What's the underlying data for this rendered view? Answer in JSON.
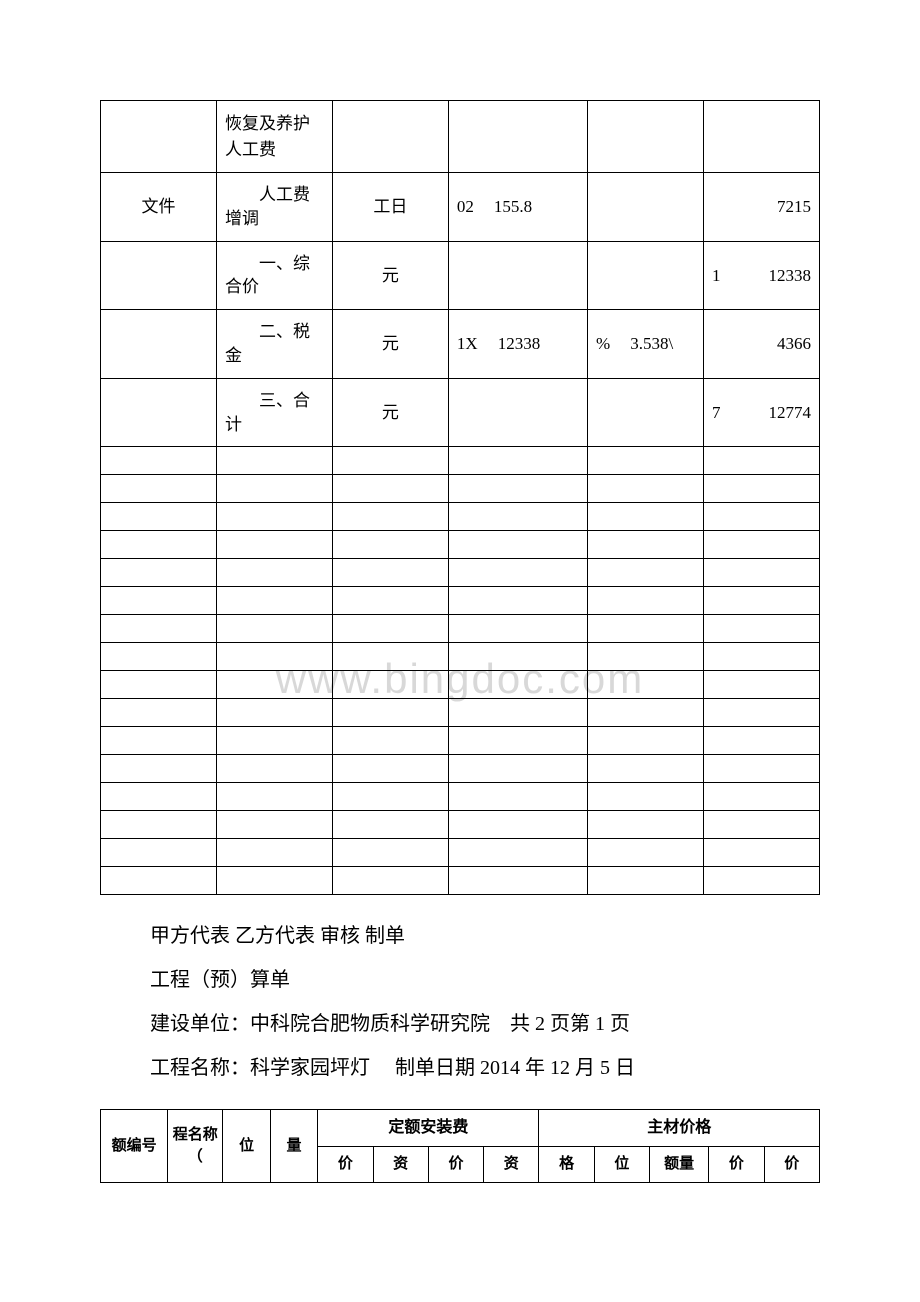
{
  "watermark": "www.bingdoc.com",
  "table1": {
    "rows": [
      {
        "c1": "",
        "c2": "恢复及养护人工费",
        "c3": "",
        "c4": "",
        "c5": "",
        "c6": ""
      },
      {
        "c1": "文件",
        "c2_label": "人工费增调",
        "c3": "工日",
        "c4_left": "02",
        "c4_right": "155.8",
        "c5": "",
        "c6": "7215"
      },
      {
        "c1": "",
        "c2_label": "一、综合价",
        "c3": "元",
        "c4": "",
        "c5": "",
        "c6_left": "1",
        "c6_right": "12338"
      },
      {
        "c1": "",
        "c2_label": "二、税金",
        "c3": "元",
        "c4_left": "1X",
        "c4_right": "12338",
        "c5_left": "%",
        "c5_right": "3.538\\",
        "c6": "4366"
      },
      {
        "c1": "",
        "c2_label": "三、合计",
        "c3": "元",
        "c4": "",
        "c5": "",
        "c6_left": "7",
        "c6_right": "12774"
      }
    ],
    "empty_row_count": 16
  },
  "paragraphs": {
    "p1": "甲方代表 乙方代表 审核 制单",
    "p2": "工程（预）算单",
    "p3": "建设单位：中科院合肥物质科学研究院　共 2 页第 1 页",
    "p4": "工程名称：科学家园坪灯　 制单日期 2014 年 12 月 5 日"
  },
  "table2": {
    "group1": "定额安装费",
    "group2": "主材价格",
    "headers": {
      "h1": "额编号",
      "h2": "程名称（",
      "h3": "位",
      "h4": "量",
      "h5": "价",
      "h6": "资",
      "h7": "价",
      "h8": "资",
      "h9": "格",
      "h10": "位",
      "h11": "额量",
      "h12": "价",
      "h13": "价"
    }
  }
}
